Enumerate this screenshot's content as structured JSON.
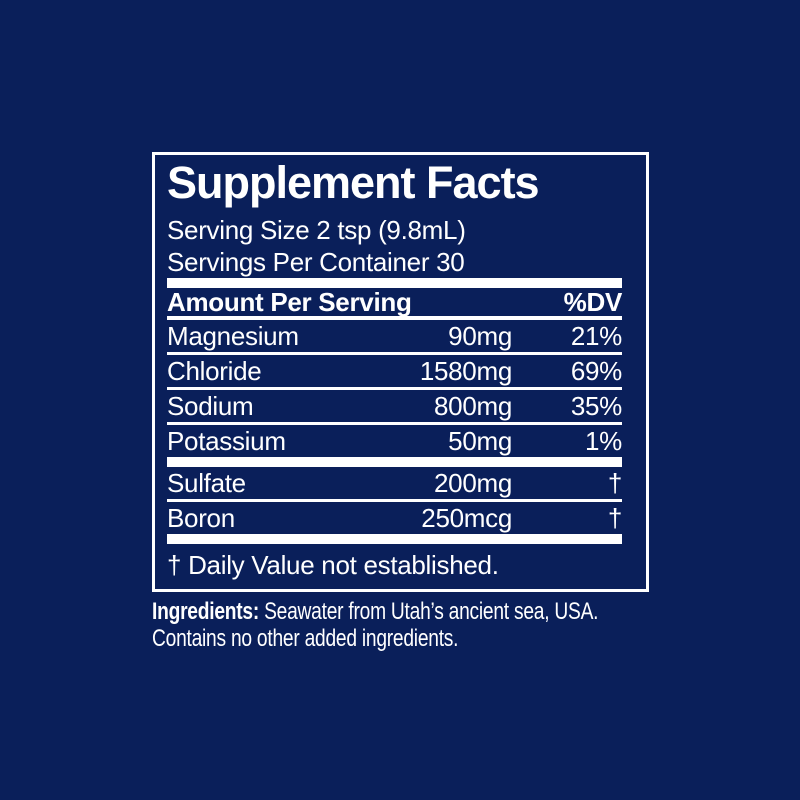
{
  "colors": {
    "background": "#0a1f5a",
    "foreground": "#ffffff"
  },
  "panel": {
    "title": "Supplement Facts",
    "serving_size": "Serving Size 2 tsp (9.8mL)",
    "servings_per_container": "Servings Per Container 30",
    "header": {
      "amount_label": "Amount Per Serving",
      "dv_label": "%DV"
    },
    "rows": [
      {
        "name": "Magnesium",
        "amount": "90mg",
        "dv": "21%"
      },
      {
        "name": "Chloride",
        "amount": "1580mg",
        "dv": "69%"
      },
      {
        "name": "Sodium",
        "amount": "800mg",
        "dv": "35%"
      },
      {
        "name": "Potassium",
        "amount": "50mg",
        "dv": "1%"
      },
      {
        "name": "Sulfate",
        "amount": "200mg",
        "dv": "†"
      },
      {
        "name": "Boron",
        "amount": "250mcg",
        "dv": "†"
      }
    ],
    "footnote": "† Daily Value not established."
  },
  "ingredients": {
    "label": "Ingredients:",
    "line1": "Seawater from Utah’s ancient sea, USA.",
    "line2": "Contains no other added ingredients."
  }
}
